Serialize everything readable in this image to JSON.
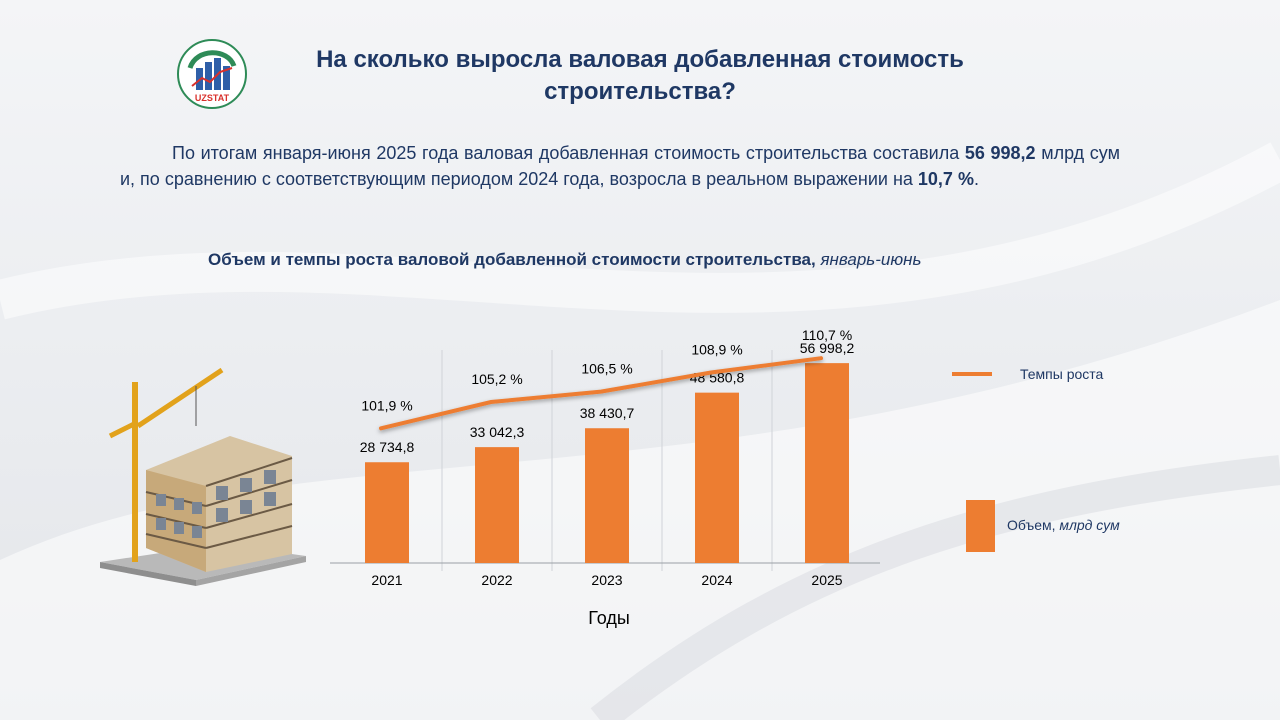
{
  "header": {
    "title_line1": "На сколько выросла валовая добавленная стоимость",
    "title_line2": "строительства?",
    "logo_text": "UZSTAT"
  },
  "lead": {
    "part1": "По итогам января-июня 2025 года валовая добавленная стоимость строительства составила ",
    "value": "56 998,2",
    "part2": " млрд сум и, по сравнению с соответствующим периодом 2024 года, возросла в реальном выражении  на ",
    "growth": "10,7 %",
    "part3": "."
  },
  "chart_title": {
    "main": "Объем и темпы роста валовой добавленной стоимости  строительства, ",
    "period": "январь-июнь"
  },
  "legend": {
    "line_label": "Темпы роста",
    "bar_label": "Объем, ",
    "bar_unit": "млрд сум"
  },
  "colors": {
    "accent": "#ed7d31",
    "text": "#1f3864"
  },
  "chart_data": {
    "type": "bar",
    "categories": [
      "2021",
      "2022",
      "2023",
      "2024",
      "2025"
    ],
    "series": [
      {
        "name": "Объем, млрд сум",
        "type": "bar",
        "values": [
          28734.8,
          33042.3,
          38430.7,
          48580.8,
          56998.2
        ],
        "labels": [
          "28 734,8",
          "33 042,3",
          "38 430,7",
          "48 580,8",
          "56 998,2"
        ]
      },
      {
        "name": "Темпы роста",
        "type": "line",
        "values": [
          101.9,
          105.2,
          106.5,
          108.9,
          110.7
        ],
        "labels": [
          "101,9 %",
          "105,2 %",
          "106,5 %",
          "108,9 %",
          "110,7 %"
        ]
      }
    ],
    "xlabel": "Годы",
    "ylabel": "",
    "ylim": [
      0,
      75000
    ],
    "line_ylim": [
      85,
      118
    ]
  }
}
